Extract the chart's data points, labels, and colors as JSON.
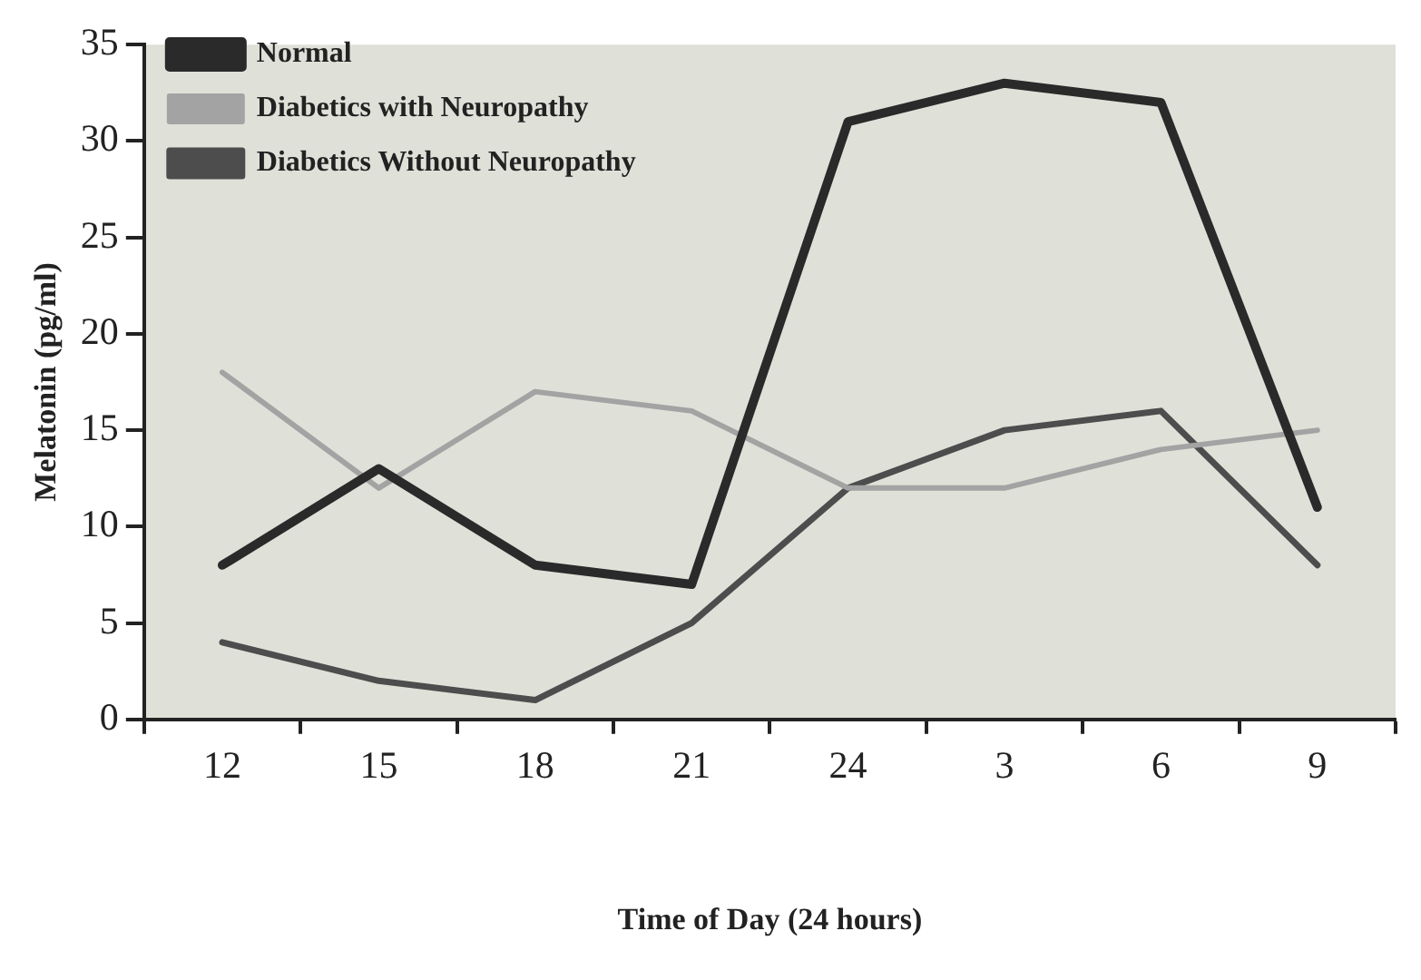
{
  "chart_data": {
    "type": "line",
    "xlabel": "Time of Day (24 hours)",
    "ylabel": "Melatonin (pg/ml)",
    "categories": [
      "12",
      "15",
      "18",
      "21",
      "24",
      "3",
      "6",
      "9"
    ],
    "series": [
      {
        "name": "Normal",
        "color": "#2a2a2a",
        "values": [
          8,
          13,
          8,
          7,
          31,
          33,
          32,
          11
        ]
      },
      {
        "name": "Diabetics with Neuropathy",
        "color": "#a3a3a3",
        "values": [
          18,
          12,
          17,
          16,
          12,
          12,
          14,
          15
        ]
      },
      {
        "name": "Diabetics Without Neuropathy",
        "color": "#4d4d4d",
        "values": [
          4,
          2,
          1,
          5,
          12,
          15,
          16,
          8
        ]
      }
    ],
    "ylim": [
      0,
      35
    ],
    "yticks": [
      0,
      5,
      10,
      15,
      20,
      25,
      30,
      35
    ],
    "grid": false,
    "legend": "top left",
    "marker": "none",
    "line_style": "solid"
  }
}
